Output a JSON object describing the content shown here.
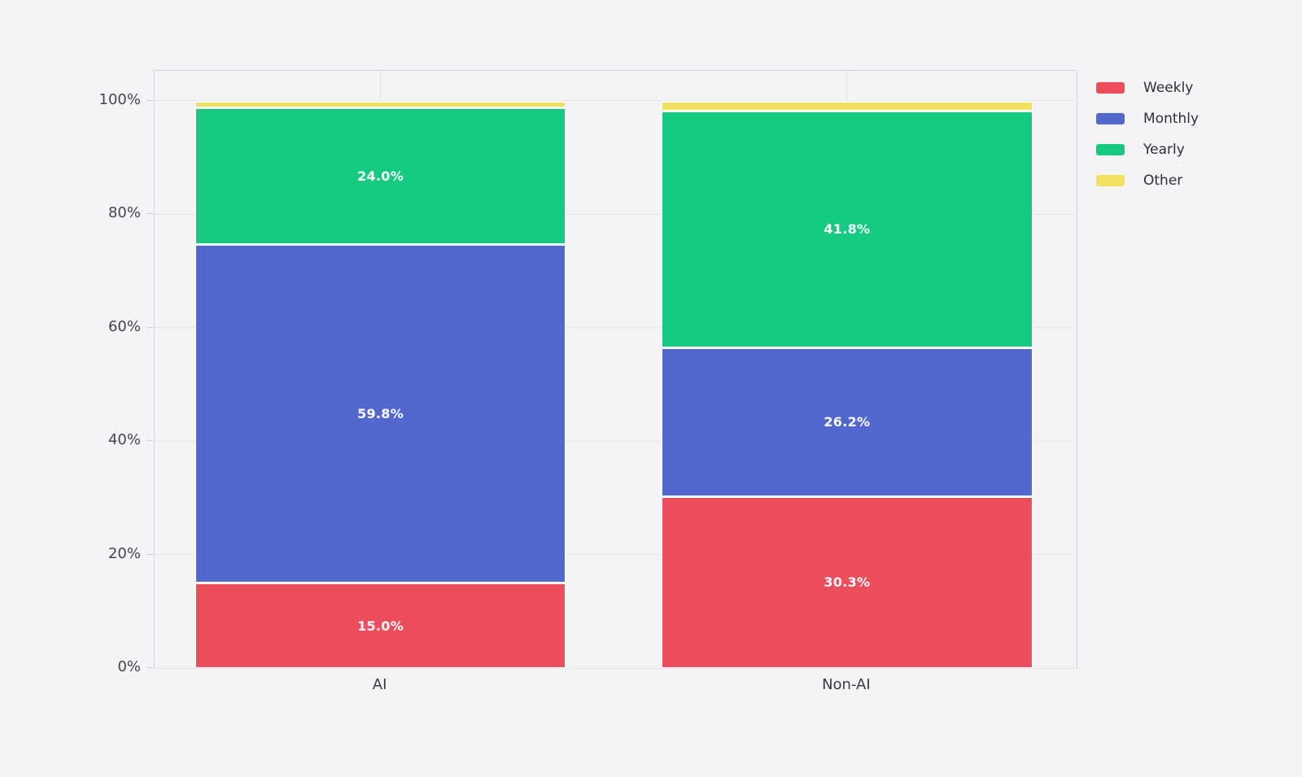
{
  "chart_data": {
    "type": "bar",
    "subtype": "stacked-percentage",
    "title": "",
    "xlabel": "",
    "ylabel": "",
    "categories": [
      "AI",
      "Non-AI"
    ],
    "series": [
      {
        "name": "Weekly",
        "color": "#ee4d5b",
        "values": [
          15.0,
          30.3
        ],
        "labels": [
          "15.0%",
          "30.3%"
        ]
      },
      {
        "name": "Monthly",
        "color": "#5268cf",
        "values": [
          59.8,
          26.2
        ],
        "labels": [
          "59.8%",
          "26.2%"
        ]
      },
      {
        "name": "Yearly",
        "color": "#14ca81",
        "values": [
          24.0,
          41.8
        ],
        "labels": [
          "24.0%",
          "41.8%"
        ]
      },
      {
        "name": "Other",
        "color": "#f2e15f",
        "values": [
          1.2,
          1.7
        ],
        "labels": [
          "",
          ""
        ]
      }
    ],
    "yticks": [
      {
        "value": 0,
        "label": "0%"
      },
      {
        "value": 20,
        "label": "20%"
      },
      {
        "value": 40,
        "label": "40%"
      },
      {
        "value": 60,
        "label": "60%"
      },
      {
        "value": 80,
        "label": "80%"
      },
      {
        "value": 100,
        "label": "100%"
      }
    ],
    "ylim": [
      0,
      105.3
    ],
    "grid": true,
    "legend": {
      "position": "top-right-outside",
      "items": [
        "Weekly",
        "Monthly",
        "Yearly",
        "Other"
      ]
    }
  },
  "colors": {
    "background": "#f4f4f6",
    "grid": "#e6e6e9",
    "spine": "#d7d7db",
    "tick_text": "#45454b",
    "segment_label_text": "#ffffff",
    "legend_text": "#2f2f35"
  }
}
